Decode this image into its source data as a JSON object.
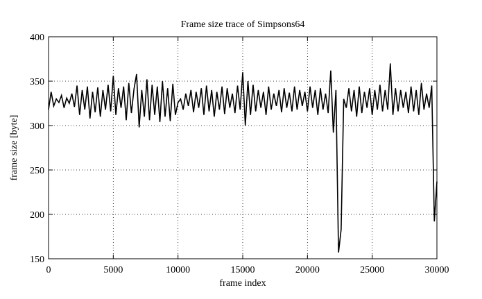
{
  "chart_data": {
    "type": "line",
    "title": "Frame size trace of Simpsons64",
    "xlabel": "frame index",
    "ylabel": "frame size [byte]",
    "x": [
      0,
      200,
      400,
      600,
      800,
      1000,
      1200,
      1400,
      1600,
      1800,
      2000,
      2200,
      2400,
      2600,
      2800,
      3000,
      3200,
      3400,
      3600,
      3800,
      4000,
      4200,
      4400,
      4600,
      4800,
      5000,
      5200,
      5400,
      5600,
      5800,
      6000,
      6200,
      6400,
      6600,
      6800,
      7000,
      7200,
      7400,
      7600,
      7800,
      8000,
      8200,
      8400,
      8600,
      8800,
      9000,
      9200,
      9400,
      9600,
      9800,
      10000,
      10200,
      10400,
      10600,
      10800,
      11000,
      11200,
      11400,
      11600,
      11800,
      12000,
      12200,
      12400,
      12600,
      12800,
      13000,
      13200,
      13400,
      13600,
      13800,
      14000,
      14200,
      14400,
      14600,
      14800,
      15000,
      15200,
      15400,
      15600,
      15800,
      16000,
      16200,
      16400,
      16600,
      16800,
      17000,
      17200,
      17400,
      17600,
      17800,
      18000,
      18200,
      18400,
      18600,
      18800,
      19000,
      19200,
      19400,
      19600,
      19800,
      20000,
      20200,
      20400,
      20600,
      20800,
      21000,
      21200,
      21400,
      21600,
      21800,
      22000,
      22200,
      22400,
      22600,
      22800,
      23000,
      23200,
      23400,
      23600,
      23800,
      24000,
      24200,
      24400,
      24600,
      24800,
      25000,
      25200,
      25400,
      25600,
      25800,
      26000,
      26200,
      26400,
      26600,
      26800,
      27000,
      27200,
      27400,
      27600,
      27800,
      28000,
      28200,
      28400,
      28600,
      28800,
      29000,
      29200,
      29400,
      29600,
      29800,
      30000
    ],
    "values": [
      318,
      338,
      322,
      330,
      326,
      334,
      320,
      331,
      325,
      336,
      321,
      345,
      312,
      340,
      318,
      344,
      308,
      338,
      315,
      343,
      310,
      340,
      318,
      346,
      316,
      356,
      312,
      342,
      320,
      344,
      306,
      348,
      314,
      341,
      358,
      298,
      340,
      310,
      352,
      306,
      346,
      312,
      344,
      304,
      350,
      310,
      342,
      305,
      347,
      312,
      326,
      330,
      318,
      336,
      322,
      340,
      315,
      338,
      320,
      342,
      312,
      345,
      316,
      340,
      310,
      338,
      318,
      344,
      313,
      342,
      320,
      336,
      314,
      345,
      318,
      360,
      300,
      350,
      312,
      346,
      316,
      340,
      320,
      338,
      312,
      344,
      318,
      336,
      322,
      340,
      315,
      342,
      320,
      337,
      316,
      344,
      318,
      340,
      322,
      338,
      316,
      344,
      320,
      340,
      312,
      342,
      318,
      336,
      314,
      362,
      292,
      340,
      157,
      183,
      330,
      320,
      342,
      316,
      340,
      310,
      344,
      314,
      338,
      320,
      342,
      312,
      340,
      318,
      346,
      316,
      340,
      318,
      370,
      312,
      342,
      316,
      340,
      320,
      338,
      314,
      344,
      316,
      340,
      312,
      348,
      318,
      336,
      320,
      345,
      192,
      237
    ],
    "color": "#000000",
    "xlim": [
      0,
      30000
    ],
    "xticks": [
      0,
      5000,
      10000,
      15000,
      20000,
      25000,
      30000
    ],
    "ylim": [
      150,
      400
    ],
    "yticks": [
      150,
      200,
      250,
      300,
      350,
      400
    ],
    "grid": true
  }
}
